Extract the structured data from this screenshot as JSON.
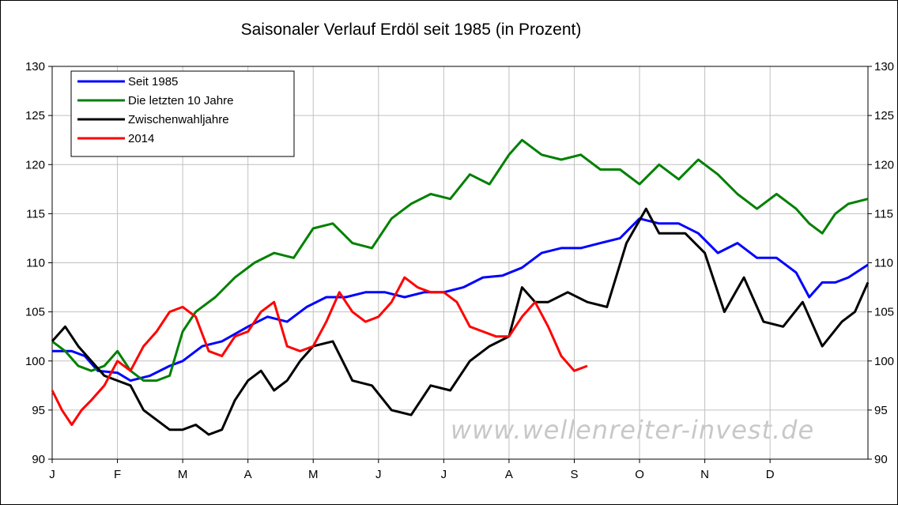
{
  "chart_data": {
    "type": "line",
    "title": "Saisonaler Verlauf Erdöl seit 1985 (in Prozent)",
    "watermark": "www.wellenreiter-invest.de",
    "ylim": [
      90,
      130
    ],
    "yticks": [
      "90",
      "95",
      "100",
      "105",
      "110",
      "115",
      "120",
      "125",
      "130"
    ],
    "right_yticks": [
      "90",
      "95",
      "100",
      "105",
      "110",
      "115",
      "120",
      "125",
      "130"
    ],
    "categories": [
      "J",
      "F",
      "M",
      "A",
      "M",
      "J",
      "J",
      "A",
      "S",
      "O",
      "N",
      "D"
    ],
    "xlim": [
      0,
      12.5
    ],
    "grid": true,
    "legend_position": "top-left",
    "series": [
      {
        "name": "Seit 1985",
        "color": "#0000ff",
        "x": [
          0,
          0.3,
          0.5,
          0.7,
          1.0,
          1.2,
          1.5,
          1.8,
          2.0,
          2.3,
          2.6,
          3.0,
          3.3,
          3.6,
          3.9,
          4.2,
          4.5,
          4.8,
          5.1,
          5.4,
          5.7,
          6.0,
          6.3,
          6.6,
          6.9,
          7.2,
          7.5,
          7.8,
          8.1,
          8.4,
          8.7,
          9.0,
          9.3,
          9.6,
          9.9,
          10.2,
          10.5,
          10.8,
          11.1,
          11.4,
          11.6,
          11.8,
          12.0,
          12.2,
          12.5
        ],
        "y": [
          101,
          101,
          100.5,
          99,
          98.8,
          98,
          98.5,
          99.5,
          100,
          101.5,
          102,
          103.5,
          104.5,
          104,
          105.5,
          106.5,
          106.5,
          107,
          107,
          106.5,
          107,
          107,
          107.5,
          108.5,
          108.7,
          109.5,
          111,
          111.5,
          111.5,
          112,
          112.5,
          114.5,
          114,
          114,
          113,
          111,
          112,
          110.5,
          110.5,
          109,
          106.5,
          108,
          108,
          108.5,
          109.8
        ]
      },
      {
        "name": "Die letzten 10 Jahre",
        "color": "#008000",
        "x": [
          0,
          0.2,
          0.4,
          0.6,
          0.8,
          1.0,
          1.2,
          1.4,
          1.6,
          1.8,
          2.0,
          2.2,
          2.5,
          2.8,
          3.1,
          3.4,
          3.7,
          4.0,
          4.3,
          4.6,
          4.9,
          5.2,
          5.5,
          5.8,
          6.1,
          6.4,
          6.7,
          7.0,
          7.2,
          7.5,
          7.8,
          8.1,
          8.4,
          8.7,
          9.0,
          9.3,
          9.6,
          9.9,
          10.2,
          10.5,
          10.8,
          11.1,
          11.4,
          11.6,
          11.8,
          12.0,
          12.2,
          12.5
        ],
        "y": [
          102,
          101,
          99.5,
          99,
          99.5,
          101,
          99,
          98,
          98,
          98.5,
          103,
          105,
          106.5,
          108.5,
          110,
          111,
          110.5,
          113.5,
          114,
          112,
          111.5,
          114.5,
          116,
          117,
          116.5,
          119,
          118,
          121,
          122.5,
          121,
          120.5,
          121,
          119.5,
          119.5,
          118,
          120,
          118.5,
          120.5,
          119,
          117,
          115.5,
          117,
          115.5,
          114,
          113,
          115,
          116,
          116.5
        ]
      },
      {
        "name": "Zwischenwahljahre",
        "color": "#000000",
        "x": [
          0,
          0.2,
          0.4,
          0.6,
          0.8,
          1.0,
          1.2,
          1.4,
          1.6,
          1.8,
          2.0,
          2.2,
          2.4,
          2.6,
          2.8,
          3.0,
          3.2,
          3.4,
          3.6,
          3.8,
          4.0,
          4.3,
          4.6,
          4.9,
          5.2,
          5.5,
          5.8,
          6.1,
          6.4,
          6.7,
          7.0,
          7.2,
          7.4,
          7.6,
          7.9,
          8.2,
          8.5,
          8.8,
          9.1,
          9.3,
          9.5,
          9.7,
          10.0,
          10.3,
          10.6,
          10.9,
          11.2,
          11.5,
          11.8,
          12.1,
          12.3,
          12.5
        ],
        "y": [
          102,
          103.5,
          101.5,
          100,
          98.5,
          98,
          97.5,
          95,
          94,
          93,
          93,
          93.5,
          92.5,
          93,
          96,
          98,
          99,
          97,
          98,
          100,
          101.5,
          102,
          98,
          97.5,
          95,
          94.5,
          97.5,
          97,
          100,
          101.5,
          102.5,
          107.5,
          106,
          106,
          107,
          106,
          105.5,
          112,
          115.5,
          113,
          113,
          113,
          111,
          105,
          108.5,
          104,
          103.5,
          106,
          101.5,
          104,
          105,
          108
        ]
      },
      {
        "name": "2014",
        "color": "#ff0000",
        "x": [
          0,
          0.15,
          0.3,
          0.45,
          0.6,
          0.8,
          1.0,
          1.2,
          1.4,
          1.6,
          1.8,
          2.0,
          2.2,
          2.4,
          2.6,
          2.8,
          3.0,
          3.2,
          3.4,
          3.6,
          3.8,
          4.0,
          4.2,
          4.4,
          4.6,
          4.8,
          5.0,
          5.2,
          5.4,
          5.6,
          5.8,
          6.0,
          6.2,
          6.4,
          6.6,
          6.8,
          7.0,
          7.2,
          7.4,
          7.6,
          7.8,
          8.0,
          8.2
        ],
        "y": [
          97,
          95,
          93.5,
          95,
          96,
          97.5,
          100,
          99,
          101.5,
          103,
          105,
          105.5,
          104.5,
          101,
          100.5,
          102.5,
          103,
          105,
          106,
          101.5,
          101,
          101.5,
          104,
          107,
          105,
          104,
          104.5,
          106,
          108.5,
          107.5,
          107,
          107,
          106,
          103.5,
          103,
          102.5,
          102.5,
          104.5,
          106,
          103.5,
          100.5,
          99,
          99.5
        ]
      }
    ]
  }
}
